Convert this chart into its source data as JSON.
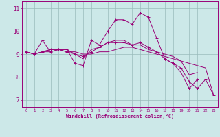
{
  "xlabel": "Windchill (Refroidissement éolien,°C)",
  "x_ticks": [
    0,
    1,
    2,
    3,
    4,
    5,
    6,
    7,
    8,
    9,
    10,
    11,
    12,
    13,
    14,
    15,
    16,
    17,
    18,
    19,
    20,
    21,
    22,
    23
  ],
  "ylim": [
    6.7,
    11.3
  ],
  "yticks": [
    7,
    8,
    9,
    10,
    11
  ],
  "bg_color": "#cce8e8",
  "line_color": "#990077",
  "grid_color": "#99bbbb",
  "series": [
    [
      9.1,
      9.0,
      9.6,
      9.1,
      9.2,
      9.2,
      8.6,
      8.5,
      9.6,
      9.4,
      10.0,
      10.5,
      10.5,
      10.3,
      10.8,
      10.6,
      9.7,
      8.8,
      8.6,
      8.2,
      7.5,
      7.9,
      null,
      null
    ],
    [
      9.1,
      9.0,
      9.1,
      9.1,
      9.2,
      9.1,
      9.1,
      9.0,
      9.0,
      9.1,
      9.1,
      9.2,
      9.3,
      9.3,
      9.2,
      9.1,
      9.0,
      8.9,
      8.8,
      8.7,
      8.6,
      8.5,
      8.4,
      7.2
    ],
    [
      9.1,
      9.0,
      9.1,
      9.2,
      9.2,
      9.2,
      9.0,
      8.8,
      9.2,
      9.3,
      9.5,
      9.6,
      9.6,
      9.4,
      9.4,
      9.2,
      9.1,
      9.0,
      8.9,
      8.7,
      8.1,
      8.2,
      null,
      null
    ],
    [
      9.1,
      9.0,
      9.1,
      9.2,
      9.2,
      9.1,
      9.0,
      8.9,
      9.1,
      9.3,
      9.5,
      9.5,
      9.5,
      9.4,
      9.5,
      9.3,
      9.1,
      8.8,
      8.6,
      8.4,
      7.8,
      7.5,
      7.9,
      7.2
    ]
  ],
  "series_markers": [
    true,
    false,
    false,
    true
  ]
}
